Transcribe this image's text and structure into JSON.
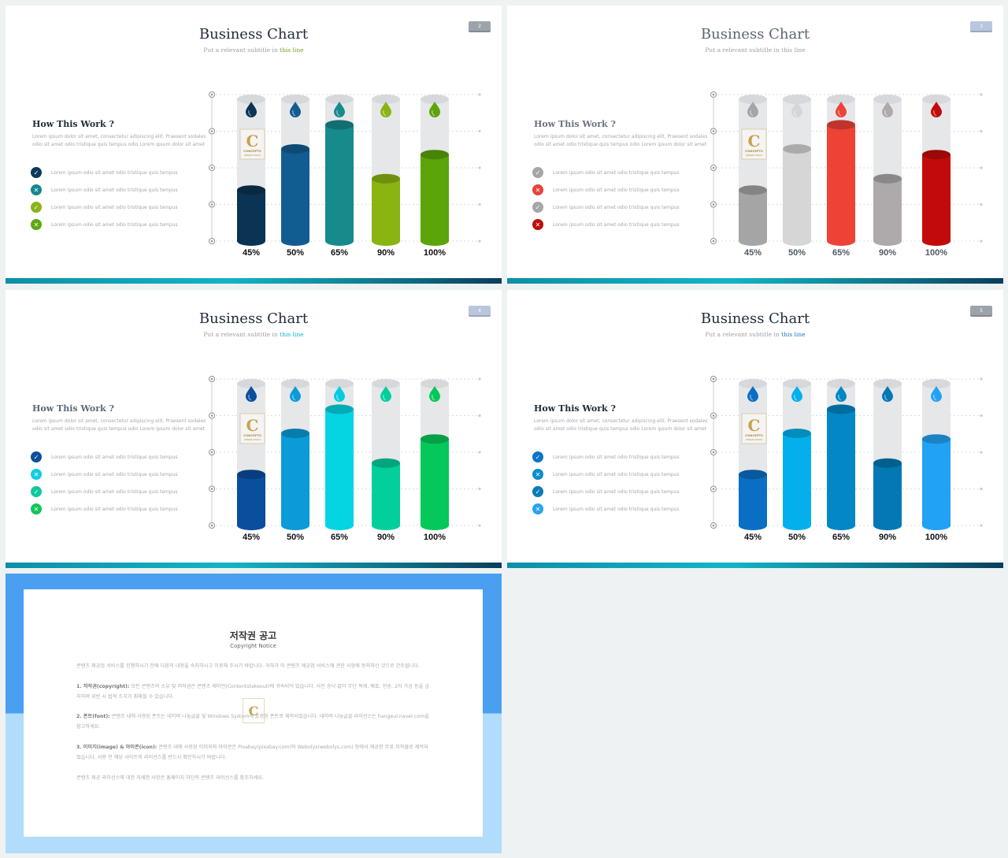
{
  "slides": [
    {
      "theme": "green",
      "title": "Business Chart",
      "subtitle_prefix": "Put a relevant subtitle in",
      "subtitle_highlight": "this line",
      "page_number": "2",
      "how_title": "How This Work ?",
      "paragraph": "Lorem ipsum dolor sit amet, consectetur adipiscing elit. Praesent sodales odio sit amet odio tristique quis tempus odio Lorem ipsum dolor sit amet",
      "list": [
        {
          "text": "Lorem ipsum odio sit amet odio tristique quis tempus",
          "mark": "✓",
          "color": "#0d3a5c"
        },
        {
          "text": "Lorem ipsum odio sit amet odio tristique quis tempus",
          "mark": "✕",
          "color": "#16898f"
        },
        {
          "text": "Lorem ipsum odio sit amet odio tristique quis tempus",
          "mark": "✓",
          "color": "#8ab417"
        },
        {
          "text": "Lorem ipsum odio sit amet odio tristique quis tempus",
          "mark": "✕",
          "color": "#5ea712"
        }
      ],
      "colors": [
        "#0b3354",
        "#125c92",
        "#178a8c",
        "#8ab411",
        "#5ba40a"
      ],
      "drop_colors": [
        "#0b3354",
        "#125c92",
        "#178a8c",
        "#8ab411",
        "#5ba40a"
      ]
    },
    {
      "theme": "gray",
      "title": "Business Chart",
      "subtitle_prefix": "Put a relevant subtitle in",
      "subtitle_highlight": "this line",
      "page_number": "3",
      "how_title": "How This Work ?",
      "paragraph": "Lorem ipsum dolor sit amet, consectetur adipiscing elit. Praesent sodales odio sit amet odio tristique quis tempus odio Lorem ipsum dolor sit amet",
      "list": [
        {
          "text": "Lorem ipsum odio sit amet odio tristique quis tempus",
          "mark": "✓",
          "color": "#a6a6a6"
        },
        {
          "text": "Lorem ipsum odio sit amet odio tristique quis tempus",
          "mark": "✕",
          "color": "#e9423a"
        },
        {
          "text": "Lorem ipsum odio sit amet odio tristique quis tempus",
          "mark": "✓",
          "color": "#a6a6a6"
        },
        {
          "text": "Lorem ipsum odio sit amet odio tristique quis tempus",
          "mark": "✕",
          "color": "#c00c0c"
        }
      ],
      "colors": [
        "#a5a5a5",
        "#d6d6d6",
        "#ee4237",
        "#aeaaab",
        "#c30a0a"
      ],
      "drop_colors": [
        "#a5a5a5",
        "#d6d6d6",
        "#ee4237",
        "#aeaaab",
        "#c30a0a"
      ]
    },
    {
      "theme": "cyan",
      "title": "Business Chart",
      "subtitle_prefix": "Put a relevant subtitle in",
      "subtitle_highlight": "this line",
      "page_number": "4",
      "how_title": "How This Work ?",
      "paragraph": "Lorem ipsum dolor sit amet, consectetur adipiscing elit. Praesent sodales odio sit amet odio tristique quis tempus odio Lorem ipsum dolor sit amet",
      "list": [
        {
          "text": "Lorem ipsum odio sit amet odio tristique quis tempus",
          "mark": "✓",
          "color": "#0c4f9c"
        },
        {
          "text": "Lorem ipsum odio sit amet odio tristique quis tempus",
          "mark": "✕",
          "color": "#10cde0"
        },
        {
          "text": "Lorem ipsum odio sit amet odio tristique quis tempus",
          "mark": "✓",
          "color": "#0fc8a0"
        },
        {
          "text": "Lorem ipsum odio sit amet odio tristique quis tempus",
          "mark": "✕",
          "color": "#10c65a"
        }
      ],
      "colors": [
        "#0a4e9e",
        "#0a9bd8",
        "#05d4e2",
        "#03cf9c",
        "#05c85a"
      ],
      "drop_colors": [
        "#0a4e9e",
        "#0a9bd8",
        "#05cbe0",
        "#03cf9c",
        "#05c85a"
      ]
    },
    {
      "theme": "blue",
      "title": "Business Chart",
      "subtitle_prefix": "Put a relevant subtitle in",
      "subtitle_highlight": "this line",
      "page_number": "5",
      "how_title": "How This Work ?",
      "paragraph": "Lorem ipsum dolor sit amet, consectetur adipiscing elit. Praesent sodales odio sit amet odio tristique quis tempus odio Lorem ipsum dolor sit amet",
      "list": [
        {
          "text": "Lorem ipsum odio sit amet odio tristique quis tempus",
          "mark": "✓",
          "color": "#0d74c7"
        },
        {
          "text": "Lorem ipsum odio sit amet odio tristique quis tempus",
          "mark": "✕",
          "color": "#0b8ed0"
        },
        {
          "text": "Lorem ipsum odio sit amet odio tristique quis tempus",
          "mark": "✓",
          "color": "#0b7ab8"
        },
        {
          "text": "Lorem ipsum odio sit amet odio tristique quis tempus",
          "mark": "✕",
          "color": "#28a3f2"
        }
      ],
      "colors": [
        "#0a6fc4",
        "#04b0ec",
        "#0387c6",
        "#0378b4",
        "#22a2f5"
      ],
      "drop_colors": [
        "#0a6fc4",
        "#04b0ec",
        "#0387c6",
        "#0378b4",
        "#22a2f5"
      ]
    }
  ],
  "chart_data": [
    {
      "type": "bar",
      "categories": [
        "45%",
        "50%",
        "65%",
        "90%",
        "100%"
      ],
      "values": [
        0.36,
        0.65,
        0.82,
        0.44,
        0.61
      ],
      "ylim": [
        0,
        1
      ],
      "grid": true
    },
    {
      "type": "bar",
      "categories": [
        "45%",
        "50%",
        "65%",
        "90%",
        "100%"
      ],
      "values": [
        0.36,
        0.65,
        0.82,
        0.44,
        0.61
      ],
      "ylim": [
        0,
        1
      ],
      "grid": true
    },
    {
      "type": "bar",
      "categories": [
        "45%",
        "50%",
        "65%",
        "90%",
        "100%"
      ],
      "values": [
        0.36,
        0.65,
        0.82,
        0.44,
        0.61
      ],
      "ylim": [
        0,
        1
      ],
      "grid": true
    },
    {
      "type": "bar",
      "categories": [
        "45%",
        "50%",
        "65%",
        "90%",
        "100%"
      ],
      "values": [
        0.36,
        0.65,
        0.82,
        0.44,
        0.61
      ],
      "ylim": [
        0,
        1
      ],
      "grid": true
    }
  ],
  "logo": {
    "letter": "C",
    "line1": "CONCEPTS",
    "line2": "DESIGN STUDIO"
  },
  "notice": {
    "title": "저작권 공고",
    "subtitle": "Copyright Notice",
    "intro": "콘텐츠 제공업 서비스를 진행하시기 전에 다음의 내용을 숙지하시고 이용해 주시기 바랍니다. 귀하가 이 콘텐츠 제공업 서비스에 관한 사항에 동의하신 것으로 간주됩니다.",
    "s1_head": "1. 저작권(copyright):",
    "s1": "모든 콘텐츠의 소유 및 저작권은 콘텐츠 제이언(Contentstakeout)에 귀속되어 있습니다. 사전 승낙 없이 무단 복제, 배포, 전송, 2차 가공 등을 금지하며 위반 시 법적 조치가 취해질 수 있습니다.",
    "s2_head": "2. 폰트(font):",
    "s2": "콘텐츠 내에 사용된 폰트는 네이버 나눔글꼴 및 Windows System에 포함된 폰트로 제작되었습니다. 네이버 나눔글꼴 라이선스는 hangeul.naver.com을 참고하세요.",
    "s3_head": "3. 이미지(image) & 아이콘(icon):",
    "s3": "콘텐츠 내에 사용된 이미지와 아이콘은 Pixabay(pixabay.com)와 Webolys(webolys.com) 등에서 제공한 무료 저작물로 제작되었습니다. 사용 전 해당 사이트의 라이선스를 반드시 확인하시기 바랍니다.",
    "outro": "콘텐츠 제공 라이선스에 대한 자세한 사항은 홈페이지 하단의 콘텐츠 라이선스를 참조하세요."
  }
}
